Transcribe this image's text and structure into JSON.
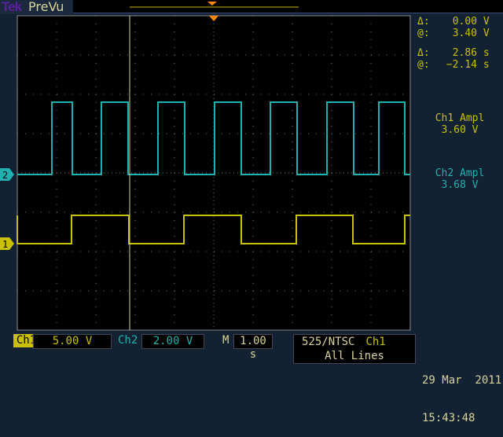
{
  "header": {
    "brand": "Tek",
    "mode": "PreVu"
  },
  "readouts": {
    "cursor_v_delta_label": "Δ:",
    "cursor_v_delta": "0.00 V",
    "cursor_v_at_label": "@:",
    "cursor_v_at": "3.40 V",
    "cursor_t_delta_label": "Δ:",
    "cursor_t_delta": "2.86 s",
    "cursor_t_at_label": "@:",
    "cursor_t_at": "−2.14 s",
    "ch1_meas_label": "Ch1 Ampl",
    "ch1_meas_value": "3.60 V",
    "ch2_meas_label": "Ch2 Ampl",
    "ch2_meas_value": "3.68 V"
  },
  "footer": {
    "ch1_label": "Ch1",
    "ch1_scale": "5.00 V",
    "ch2_label": "Ch2",
    "ch2_scale": "2.00 V",
    "time_label": "M",
    "time_scale": "1.00 s",
    "trigger_type": "525/NTSC",
    "trigger_source": "Ch1",
    "trigger_mode": "All Lines",
    "date": "29 Mar  2011",
    "time": "15:43:48"
  },
  "colors": {
    "ch1": "#c8c000",
    "ch2": "#1fb0b0",
    "trigger": "#ff8a00",
    "grid": "#777"
  },
  "chart_data": {
    "type": "line",
    "grid": true,
    "xlim": [
      -5,
      5
    ],
    "x_unit": "s",
    "series": [
      {
        "name": "Ch1",
        "marker": "1",
        "volts_per_div": 5,
        "levels": [
          0,
          3.6
        ],
        "edges_s": [
          -5,
          -3.62,
          -2.16,
          -0.76,
          0.7,
          2.1,
          3.54,
          4.86
        ],
        "start_level": "high"
      },
      {
        "name": "Ch2",
        "marker": "2",
        "volts_per_div": 2,
        "levels": [
          0,
          3.68
        ],
        "edges_s": [
          -4.12,
          -3.6,
          -2.86,
          -2.18,
          -1.42,
          -0.74,
          0.02,
          0.7,
          1.44,
          2.12,
          2.88,
          3.56,
          4.2,
          4.86
        ],
        "start_level": "low"
      }
    ],
    "cursor_time_s": -2.14
  }
}
